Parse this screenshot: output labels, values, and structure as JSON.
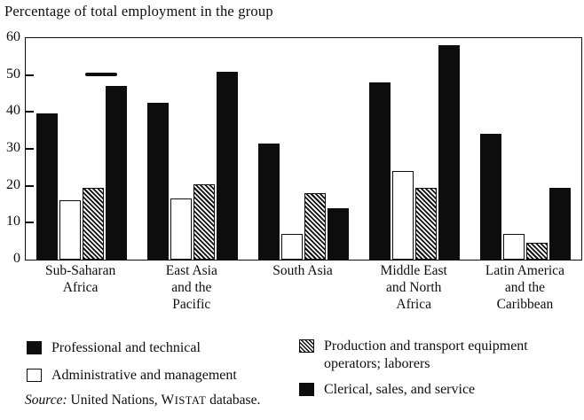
{
  "title": "Percentage of total employment in the group",
  "chart_data": {
    "type": "bar",
    "title": "Percentage of total employment in the group",
    "xlabel": "",
    "ylabel": "Percentage of total employment in the group",
    "ylim": [
      0,
      60
    ],
    "yticks": [
      0,
      10,
      20,
      30,
      40,
      50,
      60
    ],
    "grid": false,
    "legend_position": "bottom",
    "categories": [
      "Sub-Saharan Africa",
      "East Asia and the Pacific",
      "South Asia",
      "Middle East and North Africa",
      "Latin America and the Caribbean"
    ],
    "category_lines": [
      [
        "Sub-Saharan",
        "Africa"
      ],
      [
        "East Asia",
        "and the",
        "Pacific"
      ],
      [
        "South Asia"
      ],
      [
        "Middle East",
        "and North",
        "Africa"
      ],
      [
        "Latin America",
        "and the",
        "Caribbean"
      ]
    ],
    "series": [
      {
        "name": "Professional and technical",
        "style": "solid-black",
        "values": [
          39.5,
          42.5,
          31.5,
          48,
          34
        ]
      },
      {
        "name": "Administrative and management",
        "style": "white-outline",
        "values": [
          16,
          16.5,
          7,
          24,
          7
        ]
      },
      {
        "name": "Production and transport equipment operators; laborers",
        "style": "hatched",
        "values": [
          19.5,
          20.5,
          18,
          19.5,
          4.5
        ]
      },
      {
        "name": "Clerical, sales, and service",
        "style": "solid-black",
        "values": [
          47,
          51,
          14,
          58,
          19.5
        ]
      }
    ]
  },
  "legend": {
    "columns": [
      [
        {
          "swatch": "solid-black",
          "label": "Professional and technical"
        },
        {
          "swatch": "white-outline",
          "label": "Administrative and management"
        }
      ],
      [
        {
          "swatch": "hatched",
          "label": "Production and transport equipment operators; laborers"
        },
        {
          "swatch": "solid-black",
          "label": "Clerical, sales, and service"
        }
      ]
    ]
  },
  "source": {
    "parts": [
      {
        "text": "Source:",
        "style": "italic"
      },
      {
        "text": " United Nations, ",
        "style": "normal"
      },
      {
        "text": "WISTAT",
        "style": "smallcaps"
      },
      {
        "text": " database.",
        "style": "normal"
      }
    ]
  },
  "colors": {
    "ink": "#0d0d0d",
    "paper": "#ffffff"
  }
}
